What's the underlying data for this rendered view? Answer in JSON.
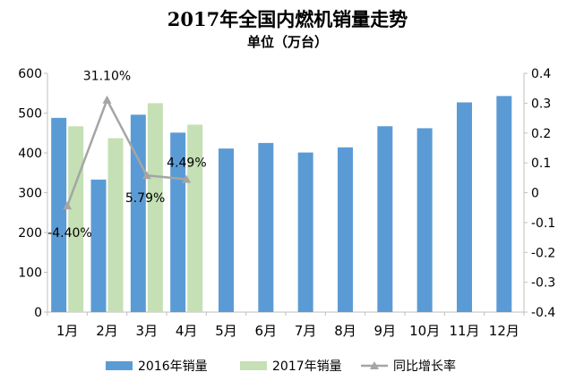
{
  "chart_data": {
    "type": "bar",
    "title": "2017年全国内燃机销量走势",
    "subtitle": "单位（万台）",
    "categories": [
      "1月",
      "2月",
      "3月",
      "4月",
      "5月",
      "6月",
      "7月",
      "8月",
      "9月",
      "10月",
      "11月",
      "12月"
    ],
    "series": [
      {
        "name": "2016年销量",
        "type": "bar",
        "axis": "left",
        "color": "#5b9bd5",
        "values": [
          488,
          333,
          496,
          451,
          411,
          425,
          401,
          414,
          467,
          462,
          527,
          543
        ]
      },
      {
        "name": "2017年销量",
        "type": "bar",
        "axis": "left",
        "color": "#c5e0b4",
        "values": [
          467,
          437,
          525,
          471,
          null,
          null,
          null,
          null,
          null,
          null,
          null,
          null
        ]
      },
      {
        "name": "同比增长率",
        "type": "line",
        "axis": "right",
        "color": "#a5a5a5",
        "values": [
          -0.044,
          0.311,
          0.0579,
          0.0449,
          null,
          null,
          null,
          null,
          null,
          null,
          null,
          null
        ],
        "data_labels": [
          "-4.40%",
          "31.10%",
          "5.79%",
          "4.49%"
        ]
      }
    ],
    "ylim_left": [
      0,
      600
    ],
    "yticks_left": [
      "0",
      "100",
      "200",
      "300",
      "400",
      "500",
      "600"
    ],
    "ylim_right": [
      -0.4,
      0.4
    ],
    "yticks_right": [
      "-0.4",
      "-0.3",
      "-0.2",
      "-0.1",
      "0",
      "0.1",
      "0.2",
      "0.3",
      "0.4"
    ],
    "grid": false,
    "legend_position": "bottom"
  }
}
